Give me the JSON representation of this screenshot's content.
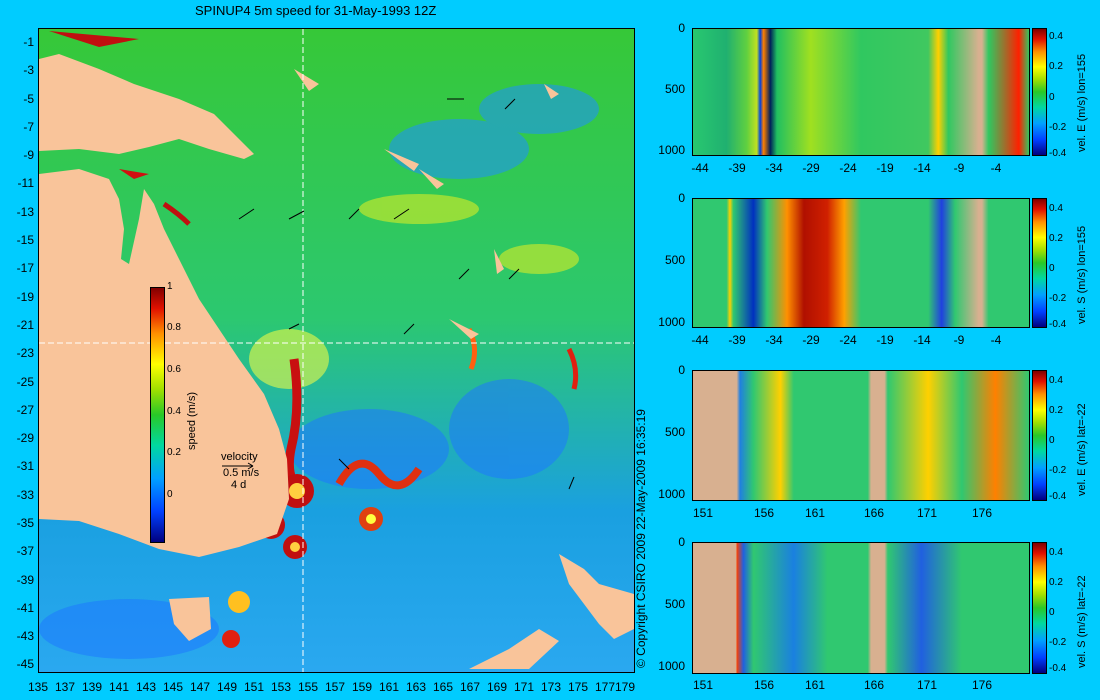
{
  "title": "SPINUP4 5m speed for 31-May-1993 12Z",
  "map": {
    "lat_ticks": [
      "-1",
      "-3",
      "-5",
      "-7",
      "-9",
      "-11",
      "-13",
      "-15",
      "-17",
      "-19",
      "-21",
      "-23",
      "-25",
      "-27",
      "-29",
      "-31",
      "-33",
      "-35",
      "-37",
      "-39",
      "-41",
      "-43",
      "-45"
    ],
    "lon_ticks": [
      "135",
      "137",
      "139",
      "141",
      "143",
      "145",
      "147",
      "149",
      "151",
      "153",
      "155",
      "157",
      "159",
      "161",
      "163",
      "165",
      "167",
      "169",
      "171",
      "173",
      "175",
      "177",
      "179"
    ],
    "colorbar": {
      "label": "speed (m/s)",
      "ticks": [
        "1",
        "0.8",
        "0.6",
        "0.4",
        "0.2",
        "0"
      ]
    },
    "velocity_legend": {
      "title": "velocity",
      "speed": "0.5 m/s",
      "duration": "4 d"
    },
    "colors": {
      "land": "#f9c49a",
      "ocean": "#28c84a",
      "section_lines": "#ffffff"
    }
  },
  "copyright": "© Copyright CSIRO 2009  22-May-2009 16:35:19",
  "sections": [
    {
      "label": "vel. E (m/s) lon=155",
      "y_ticks": [
        "0",
        "500",
        "1000"
      ],
      "x_ticks": [
        "-44",
        "-39",
        "-34",
        "-29",
        "-24",
        "-19",
        "-14",
        "-9",
        "-4"
      ],
      "cbar_ticks": [
        "0.4",
        "0.2",
        "0",
        "-0.2",
        "-0.4"
      ]
    },
    {
      "label": "vel. S (m/s) lon=155",
      "y_ticks": [
        "0",
        "500",
        "1000"
      ],
      "x_ticks": [
        "-44",
        "-39",
        "-34",
        "-29",
        "-24",
        "-19",
        "-14",
        "-9",
        "-4"
      ],
      "cbar_ticks": [
        "0.4",
        "0.2",
        "0",
        "-0.2",
        "-0.4"
      ]
    },
    {
      "label": "vel. E (m/s) lat=-22",
      "y_ticks": [
        "0",
        "500",
        "1000"
      ],
      "x_ticks": [
        "151",
        "156",
        "161",
        "166",
        "171",
        "176"
      ],
      "cbar_ticks": [
        "0.4",
        "0.2",
        "0",
        "-0.2",
        "-0.4"
      ]
    },
    {
      "label": "vel. S (m/s) lat=-22",
      "y_ticks": [
        "0",
        "500",
        "1000"
      ],
      "x_ticks": [
        "151",
        "156",
        "161",
        "166",
        "171",
        "176"
      ],
      "cbar_ticks": [
        "0.4",
        "0.2",
        "0",
        "-0.2",
        "-0.4"
      ]
    }
  ]
}
